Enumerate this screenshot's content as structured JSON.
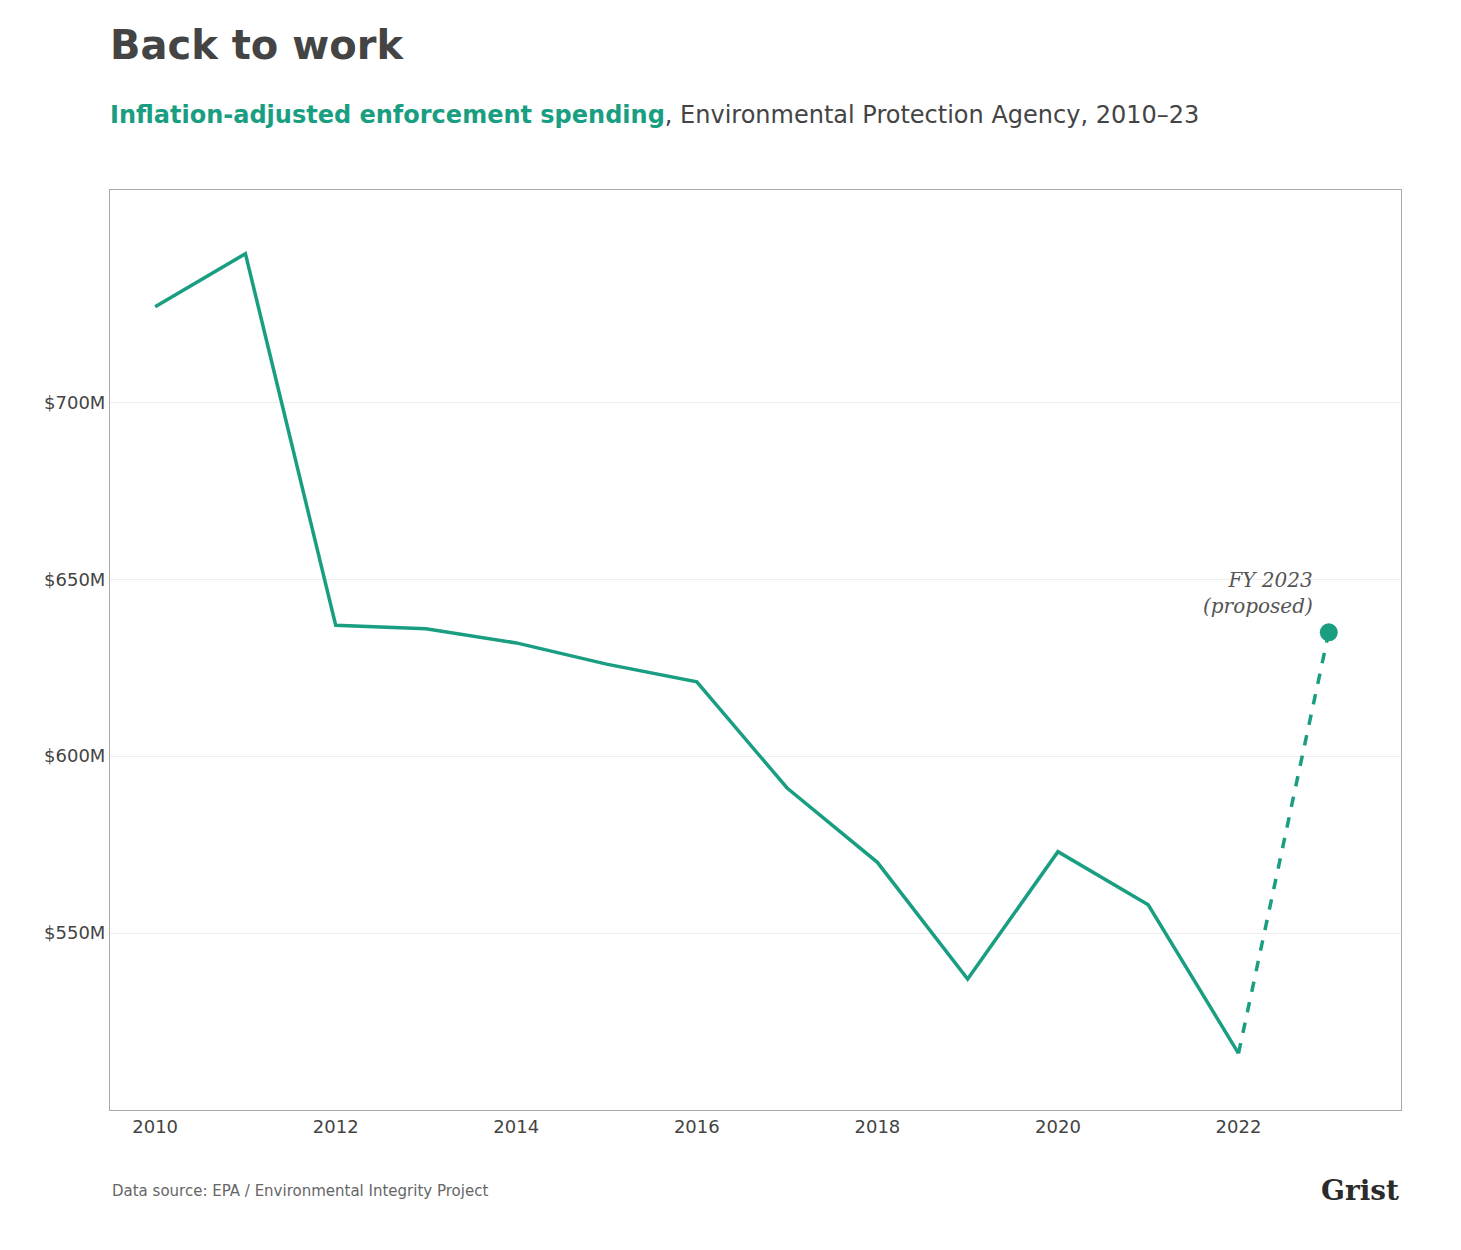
{
  "chart_data": {
    "type": "line",
    "title": "Back to work",
    "subtitle": "Inflation-adjusted enforcement spending, Environmental Protection Agency, 2010–23",
    "subtitle_highlight": "Inflation-adjusted enforcement spending",
    "x": [
      2010,
      2011,
      2012,
      2013,
      2014,
      2015,
      2016,
      2017,
      2018,
      2019,
      2020,
      2021,
      2022
    ],
    "values": [
      727,
      742,
      637,
      636,
      632,
      626,
      621,
      591,
      570,
      537,
      573,
      558,
      516
    ],
    "color": "#1a9e82",
    "line_style": "solid",
    "proposed": {
      "x": 2023,
      "value": 635,
      "line_style": "dashed",
      "marker": "circle",
      "annotation": [
        "FY 2023",
        "(proposed)"
      ]
    },
    "xlim": [
      2009.5,
      2023.8
    ],
    "xticks": [
      2010,
      2012,
      2014,
      2016,
      2018,
      2020,
      2022
    ],
    "ylim": [
      500,
      760
    ],
    "yticks": [
      {
        "value": 550,
        "label": "$550M"
      },
      {
        "value": 600,
        "label": "$600M"
      },
      {
        "value": 650,
        "label": "$650M"
      },
      {
        "value": 700,
        "label": "$700M"
      }
    ],
    "grid": "y",
    "source": "Data source: EPA / Environmental Integrity Project",
    "credit": "Grist"
  }
}
